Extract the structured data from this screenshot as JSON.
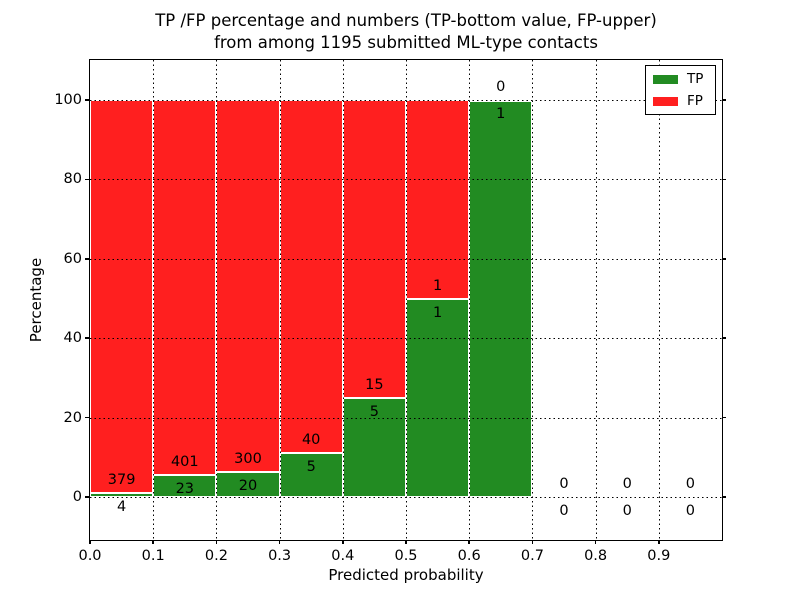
{
  "title": {
    "line1": "TP /FP percentage and numbers (TP-bottom value, FP-upper)",
    "line2": "from among 1195 submitted ML-type contacts"
  },
  "axes": {
    "ylabel": "Percentage",
    "xlabel": "Predicted probability",
    "ytick_labels": [
      "0",
      "20",
      "40",
      "60",
      "80",
      "100"
    ],
    "xtick_labels": [
      "0.0",
      "0.1",
      "0.2",
      "0.3",
      "0.4",
      "0.5",
      "0.6",
      "0.7",
      "0.8",
      "0.9"
    ]
  },
  "legend": {
    "position": "upper right",
    "entries": [
      {
        "label": "TP",
        "color": "#228B22"
      },
      {
        "label": "FP",
        "color": "#FF1F1F"
      }
    ]
  },
  "colors": {
    "tp_green": "#228B22",
    "fp_red": "#FF1F1F",
    "bar_edge": "#FFFFFF",
    "grid": "#000000"
  },
  "chart_data": {
    "type": "bar",
    "stacked": true,
    "normalized_to_percent": true,
    "title": "TP /FP percentage and numbers (TP-bottom value, FP-upper) from among 1195 submitted ML-type contacts",
    "xlabel": "Predicted probability",
    "ylabel": "Percentage",
    "total_contacts": 1195,
    "bins": [
      "0.0-0.1",
      "0.1-0.2",
      "0.2-0.3",
      "0.3-0.4",
      "0.4-0.5",
      "0.5-0.6",
      "0.6-0.7",
      "0.7-0.8",
      "0.8-0.9",
      "0.9-1.0"
    ],
    "bin_starts": [
      0.0,
      0.1,
      0.2,
      0.3,
      0.4,
      0.5,
      0.6,
      0.7,
      0.8,
      0.9
    ],
    "bin_width": 0.1,
    "series": [
      {
        "name": "TP",
        "color": "#228B22",
        "counts": [
          4,
          23,
          20,
          5,
          5,
          1,
          1,
          0,
          0,
          0
        ]
      },
      {
        "name": "FP",
        "color": "#FF1F1F",
        "counts": [
          379,
          401,
          300,
          40,
          15,
          1,
          0,
          0,
          0,
          0
        ]
      }
    ],
    "tp_percent_of_bin": [
      1.0,
      5.4,
      6.3,
      11.1,
      25.0,
      50.0,
      100.0,
      null,
      null,
      null
    ],
    "yticks": [
      0,
      20,
      40,
      60,
      80,
      100
    ],
    "xticks": [
      0.0,
      0.1,
      0.2,
      0.3,
      0.4,
      0.5,
      0.6,
      0.7,
      0.8,
      0.9
    ],
    "ylim": [
      -10.8,
      110.1
    ],
    "xlim": [
      0.0,
      1.0
    ],
    "grid": "dotted",
    "legend_position": "upper right"
  }
}
